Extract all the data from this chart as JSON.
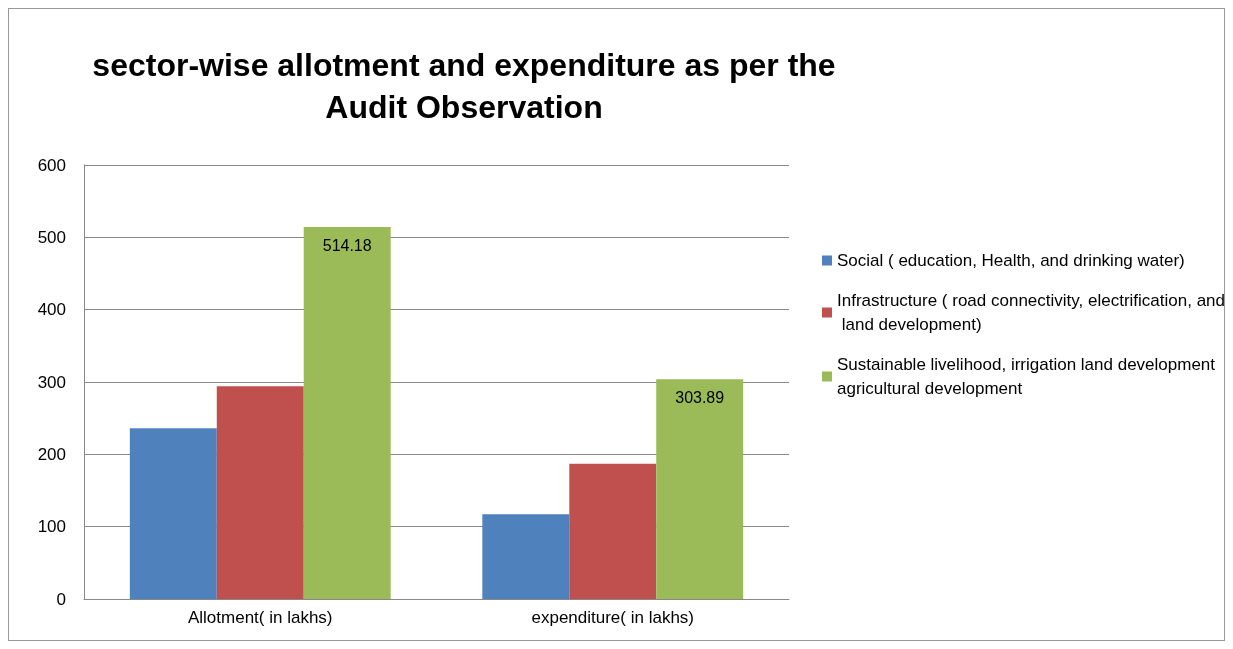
{
  "chart_data": {
    "type": "bar",
    "title": "sector-wise allotment and expenditure as per the\nAudit Observation",
    "categories": [
      "Allotment( in lakhs)",
      "expenditure( in lakhs)"
    ],
    "series": [
      {
        "name": "Social ( education, Health, and drinking water)",
        "color": "#4f81bd",
        "values": [
          236,
          117
        ]
      },
      {
        "name": "Infrastructure ( road connectivity, electrification, and land development)",
        "color": "#c0504d",
        "values": [
          294,
          187
        ]
      },
      {
        "name": "Sustainable livelihood, irrigation land development agricultural development",
        "color": "#9bbb59",
        "values": [
          514.18,
          303.89
        ],
        "value_labels": [
          "514.18",
          "303.89"
        ]
      }
    ],
    "ylim": [
      0,
      600
    ],
    "yticks": [
      0,
      100,
      200,
      300,
      400,
      500,
      600
    ],
    "grid": "y",
    "legend": "right"
  }
}
